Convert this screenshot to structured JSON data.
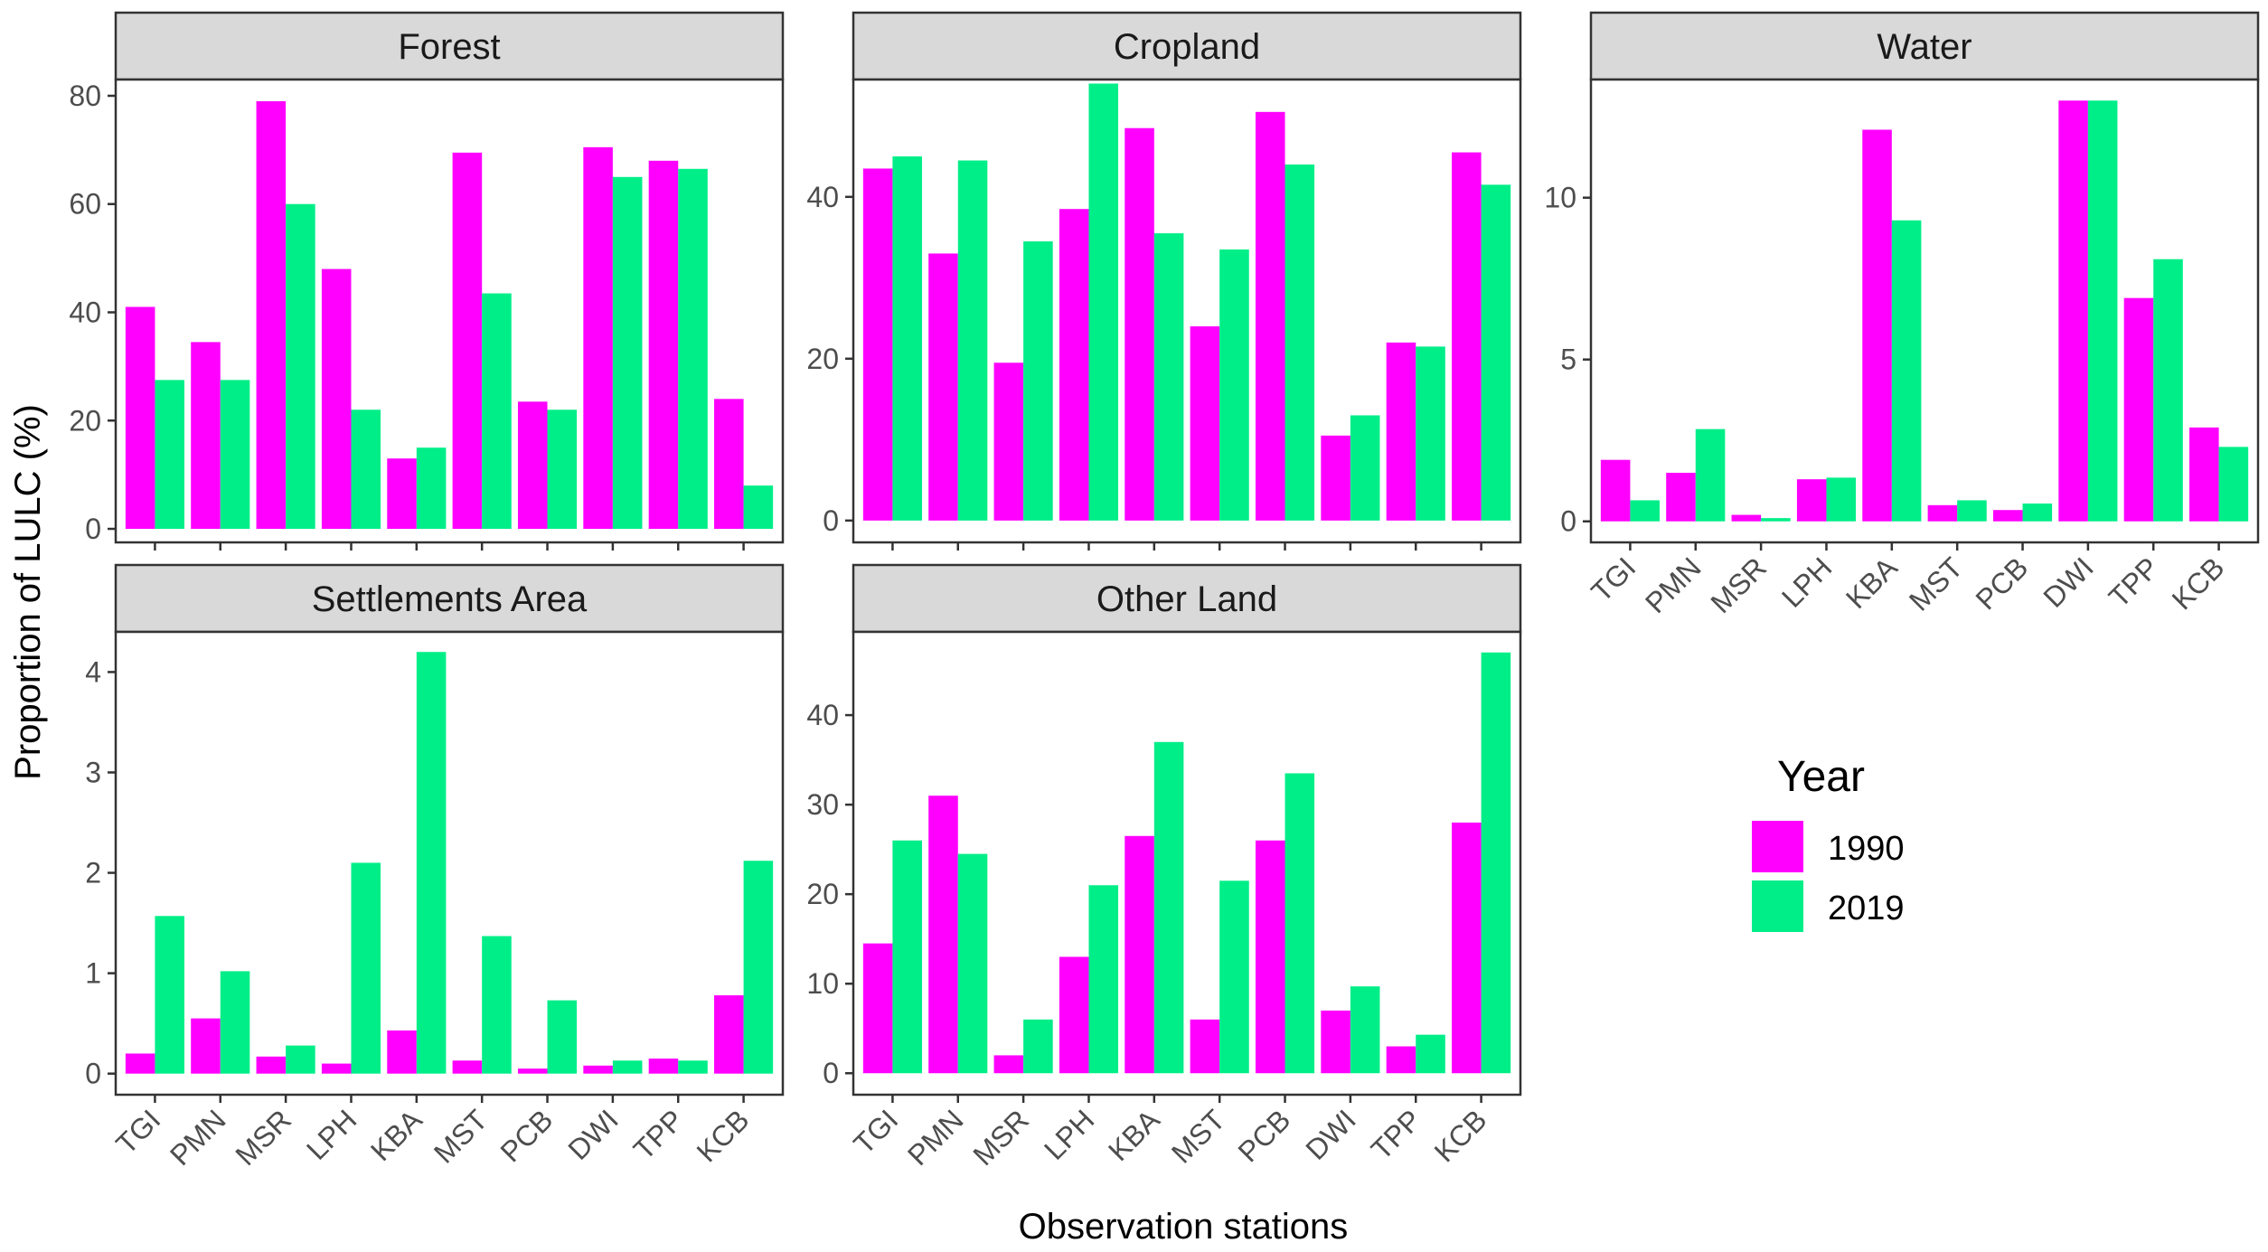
{
  "chart_data": {
    "type": "bar",
    "layout": "facet_wrap",
    "ylabel": "Proportion of LULC (%)",
    "xlabel": "Observation stations",
    "categories": [
      "TGI",
      "PMN",
      "MSR",
      "LPH",
      "KBA",
      "MST",
      "PCB",
      "DWI",
      "TPP",
      "KCB"
    ],
    "legend": {
      "title": "Year",
      "placement": "right",
      "entries": [
        {
          "name": "1990",
          "color": "#ff00ff"
        },
        {
          "name": "2019",
          "color": "#00ee88"
        }
      ]
    },
    "panels": [
      {
        "title": "Forest",
        "ylim": [
          -2.5,
          83
        ],
        "yticks": [
          "0",
          "20",
          "40",
          "60",
          "80"
        ],
        "ytick_values": [
          0,
          20,
          40,
          60,
          80
        ],
        "series": [
          {
            "name": "1990",
            "values": [
              41,
              34.5,
              79,
              48,
              13,
              69.5,
              23.5,
              70.5,
              68,
              24
            ]
          },
          {
            "name": "2019",
            "values": [
              27.5,
              27.5,
              60,
              22,
              15,
              43.5,
              22,
              65,
              66.5,
              8
            ]
          }
        ]
      },
      {
        "title": "Cropland",
        "ylim": [
          -2.7,
          54.5
        ],
        "yticks": [
          "0",
          "20",
          "40"
        ],
        "ytick_values": [
          0,
          20,
          40
        ],
        "series": [
          {
            "name": "1990",
            "values": [
              43.5,
              33,
              19.5,
              38.5,
              48.5,
              24,
              50.5,
              10.5,
              22,
              45.5
            ]
          },
          {
            "name": "2019",
            "values": [
              45,
              44.5,
              34.5,
              54,
              35.5,
              33.5,
              44,
              13,
              21.5,
              41.5
            ]
          }
        ]
      },
      {
        "title": "Water",
        "ylim": [
          -0.65,
          13.65
        ],
        "yticks": [
          "0",
          "5",
          "10"
        ],
        "ytick_values": [
          0,
          5,
          10
        ],
        "series": [
          {
            "name": "1990",
            "values": [
              1.9,
              1.5,
              0.2,
              1.3,
              12.1,
              0.5,
              0.35,
              13,
              6.9,
              2.9
            ]
          },
          {
            "name": "2019",
            "values": [
              0.65,
              2.85,
              0.1,
              1.35,
              9.3,
              0.65,
              0.55,
              13,
              8.1,
              2.3
            ]
          }
        ]
      },
      {
        "title": "Settlements Area",
        "ylim": [
          -0.21,
          4.4
        ],
        "yticks": [
          "0",
          "1",
          "2",
          "3",
          "4"
        ],
        "ytick_values": [
          0,
          1,
          2,
          3,
          4
        ],
        "series": [
          {
            "name": "1990",
            "values": [
              0.2,
              0.55,
              0.17,
              0.1,
              0.43,
              0.13,
              0.05,
              0.08,
              0.15,
              0.78
            ]
          },
          {
            "name": "2019",
            "values": [
              1.57,
              1.02,
              0.28,
              2.1,
              4.2,
              1.37,
              0.73,
              0.13,
              0.13,
              2.12
            ]
          }
        ]
      },
      {
        "title": "Other Land",
        "ylim": [
          -2.4,
          49.3
        ],
        "yticks": [
          "0",
          "10",
          "20",
          "30",
          "40"
        ],
        "ytick_values": [
          0,
          10,
          20,
          30,
          40
        ],
        "series": [
          {
            "name": "1990",
            "values": [
              14.5,
              31,
              2,
              13,
              26.5,
              6,
              26,
              7,
              3,
              28
            ]
          },
          {
            "name": "2019",
            "values": [
              26,
              24.5,
              6,
              21,
              37,
              21.5,
              33.5,
              9.7,
              4.3,
              47
            ]
          }
        ]
      }
    ]
  }
}
